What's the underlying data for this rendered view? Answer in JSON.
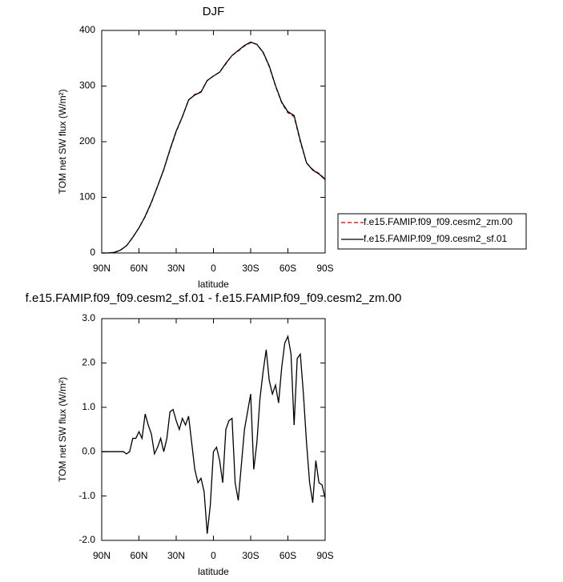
{
  "chart_data": [
    {
      "type": "line",
      "title": "DJF",
      "xlabel": "latitude",
      "ylabel": "TOM net SW flux (W/m²)",
      "x": [
        90,
        85,
        80,
        75,
        70,
        65,
        60,
        55,
        50,
        45,
        40,
        35,
        30,
        25,
        20,
        15,
        10,
        5,
        0,
        -5,
        -10,
        -15,
        -20,
        -25,
        -30,
        -35,
        -40,
        -45,
        -50,
        -55,
        -60,
        -65,
        -70,
        -75,
        -80,
        -85,
        -90
      ],
      "xlim": [
        90,
        -90
      ],
      "xticks": [
        {
          "value": 90,
          "label": "90N"
        },
        {
          "value": 60,
          "label": "60N"
        },
        {
          "value": 30,
          "label": "30N"
        },
        0,
        {
          "value": -30,
          "label": "30S"
        },
        {
          "value": -60,
          "label": "60S"
        },
        {
          "value": -90,
          "label": "90S"
        }
      ],
      "ylim": [
        0,
        400
      ],
      "yticks": [
        0,
        100,
        200,
        300,
        400
      ],
      "legend": "right",
      "series": [
        {
          "name": "f.e15.FAMIP.f09_f09.cesm2_zm.00",
          "color": "#cc0000",
          "dash": true,
          "values": [
            0,
            0,
            1,
            5,
            13,
            28,
            45,
            65,
            90,
            120,
            150,
            185,
            218,
            245,
            275,
            285,
            290,
            310,
            318,
            325,
            340,
            355,
            363,
            372,
            378,
            375,
            360,
            335,
            300,
            270,
            252,
            245,
            200,
            162,
            150,
            143,
            133
          ]
        },
        {
          "name": "f.e15.FAMIP.f09_f09.cesm2_sf.01",
          "color": "#000000",
          "dash": false,
          "values": [
            0,
            0,
            1,
            5,
            13,
            28,
            45,
            66,
            91,
            120,
            150,
            186,
            219,
            245,
            275,
            284,
            289,
            310,
            318,
            325,
            341,
            355,
            364,
            373,
            379,
            375,
            361,
            336,
            301,
            271,
            254,
            247,
            202,
            162,
            149,
            142,
            132
          ]
        }
      ]
    },
    {
      "type": "line",
      "title": "f.e15.FAMIP.f09_f09.cesm2_sf.01 - f.e15.FAMIP.f09_f09.cesm2_zm.00",
      "xlabel": "latitude",
      "ylabel": "TOM net SW flux (W/m²)",
      "x": [
        90,
        87.5,
        85,
        82.5,
        80,
        77.5,
        75,
        72.5,
        70,
        67.5,
        65,
        62.5,
        60,
        57.5,
        55,
        52.5,
        50,
        47.5,
        45,
        42.5,
        40,
        37.5,
        35,
        32.5,
        30,
        27.5,
        25,
        22.5,
        20,
        17.5,
        15,
        12.5,
        10,
        7.5,
        5,
        2.5,
        0,
        -2.5,
        -5,
        -7.5,
        -10,
        -12.5,
        -15,
        -17.5,
        -20,
        -22.5,
        -25,
        -27.5,
        -30,
        -32.5,
        -35,
        -37.5,
        -40,
        -42.5,
        -45,
        -47.5,
        -50,
        -52.5,
        -55,
        -57.5,
        -60,
        -62.5,
        -65,
        -67.5,
        -70,
        -72.5,
        -75,
        -77.5,
        -80,
        -82.5,
        -85,
        -87.5,
        -90
      ],
      "xlim": [
        90,
        -90
      ],
      "xticks": [
        {
          "value": 90,
          "label": "90N"
        },
        {
          "value": 60,
          "label": "60N"
        },
        {
          "value": 30,
          "label": "30N"
        },
        0,
        {
          "value": -30,
          "label": "30S"
        },
        {
          "value": -60,
          "label": "60S"
        },
        {
          "value": -90,
          "label": "90S"
        }
      ],
      "ylim": [
        -2,
        3
      ],
      "yticks": [
        {
          "value": -2,
          "label": "-2.0"
        },
        {
          "value": -1,
          "label": "-1.0"
        },
        {
          "value": 0,
          "label": "0.0"
        },
        {
          "value": 1,
          "label": "1.0"
        },
        {
          "value": 2,
          "label": "2.0"
        },
        {
          "value": 3,
          "label": "3.0"
        }
      ],
      "series": [
        {
          "color": "#000000",
          "dash": false,
          "values": [
            0,
            0,
            0,
            0,
            0,
            0,
            0,
            0,
            -0.05,
            0,
            0.3,
            0.3,
            0.45,
            0.3,
            0.85,
            0.6,
            0.4,
            -0.05,
            0.1,
            0.3,
            0,
            0.3,
            0.9,
            0.95,
            0.7,
            0.5,
            0.75,
            0.6,
            0.8,
            0.2,
            -0.4,
            -0.7,
            -0.6,
            -0.9,
            -1.85,
            -1.2,
            0,
            0.1,
            -0.2,
            -0.7,
            0.5,
            0.7,
            0.75,
            -0.7,
            -1.1,
            -0.3,
            0.5,
            0.9,
            1.3,
            -0.4,
            0.2,
            1.2,
            1.8,
            2.3,
            1.6,
            1.3,
            1.5,
            1.1,
            1.9,
            2.45,
            2.6,
            2.2,
            0.6,
            2.1,
            2.2,
            1.3,
            0.2,
            -0.7,
            -1.15,
            -0.2,
            -0.7,
            -0.75,
            -1.05
          ]
        }
      ]
    }
  ]
}
